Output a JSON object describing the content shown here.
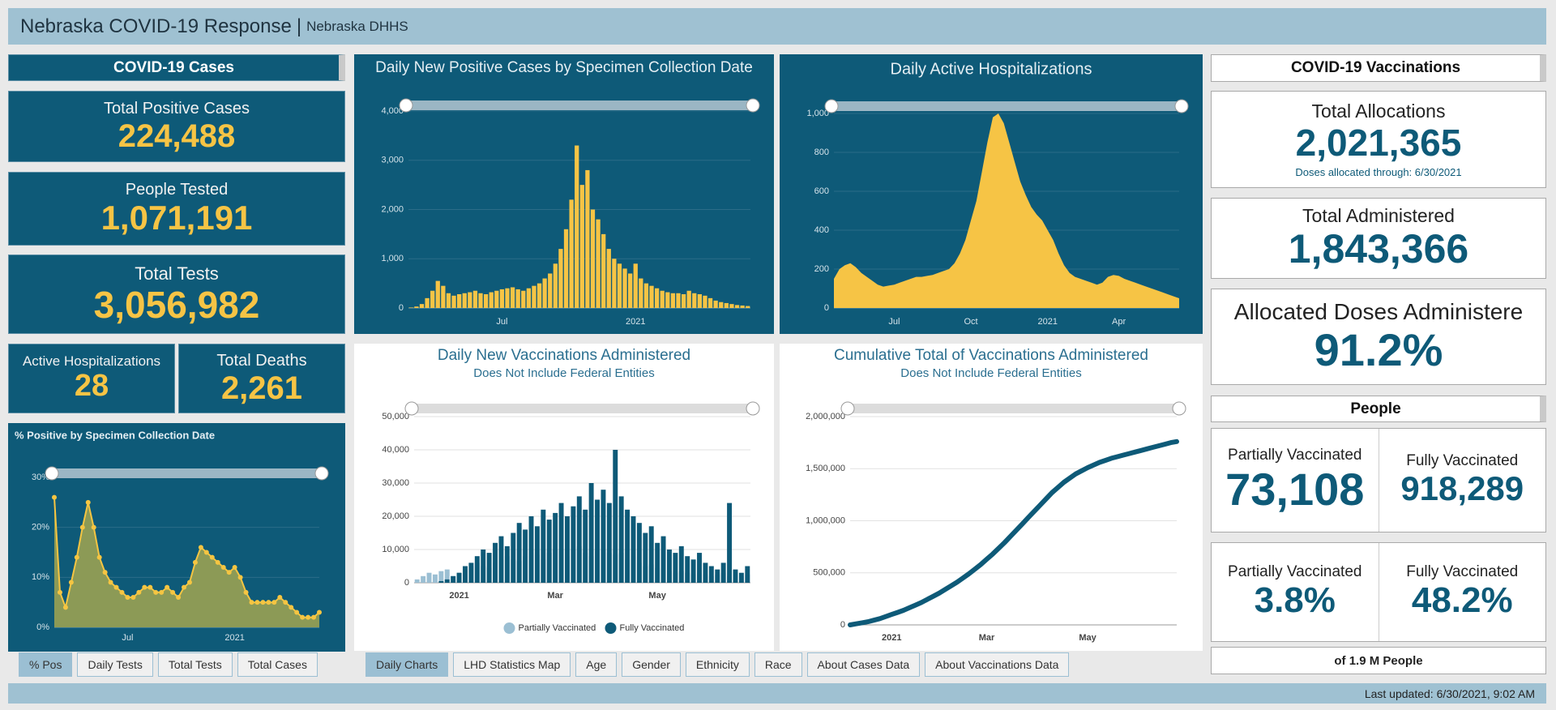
{
  "header": {
    "title": "Nebraska COVID-19 Response",
    "separator": "|",
    "subtitle": "Nebraska DHHS"
  },
  "cases": {
    "heading": "COVID-19 Cases",
    "total_positive": {
      "label": "Total Positive Cases",
      "value": "224,488"
    },
    "people_tested": {
      "label": "People Tested",
      "value": "1,071,191"
    },
    "total_tests": {
      "label": "Total Tests",
      "value": "3,056,982"
    },
    "active_hospitalizations": {
      "label": "Active Hospitalizations",
      "value": "28"
    },
    "total_deaths": {
      "label": "Total Deaths",
      "value": "2,261"
    }
  },
  "vaccinations": {
    "heading": "COVID-19 Vaccinations",
    "total_allocations": {
      "label": "Total Allocations",
      "value": "2,021,365",
      "note": "Doses allocated through: 6/30/2021"
    },
    "total_administered": {
      "label": "Total Administered",
      "value": "1,843,366"
    },
    "allocated_administered": {
      "label": "Allocated Doses Administere",
      "value": "91.2%"
    },
    "people_heading": "People",
    "people_counts": [
      {
        "label": "Partially Vaccinated",
        "value": "73,108"
      },
      {
        "label": "Fully Vaccinated",
        "value": "918,289"
      }
    ],
    "people_percents": [
      {
        "label": "Partially Vaccinated",
        "value": "3.8%"
      },
      {
        "label": "Fully Vaccinated",
        "value": "48.2%"
      }
    ],
    "footnote": "of 1.9 M People"
  },
  "tabs": {
    "left": [
      "% Pos",
      "Daily Tests",
      "Total Tests",
      "Total Cases"
    ],
    "main": [
      "Daily Charts",
      "LHD Statistics Map",
      "Age",
      "Gender",
      "Ethnicity",
      "Race",
      "About Cases Data",
      "About Vaccinations Data"
    ]
  },
  "footer": {
    "last_updated": "Last updated: 6/30/2021, 9:02 AM"
  },
  "chart_data": [
    {
      "type": "area",
      "title": "% Positive by Specimen Collection Date",
      "markers": true,
      "color": "#8c9a56",
      "marker_color": "#f5c542",
      "categories": [
        null,
        null,
        null,
        null,
        null,
        null,
        null,
        null,
        null,
        null,
        null,
        null,
        null,
        "Jul",
        null,
        null,
        null,
        null,
        null,
        null,
        null,
        null,
        null,
        null,
        null,
        null,
        null,
        null,
        null,
        null,
        null,
        null,
        "2021",
        null,
        null,
        null,
        null,
        null,
        null,
        null,
        null,
        null,
        null,
        null,
        null,
        null,
        null,
        null
      ],
      "values": [
        26,
        7,
        4,
        9,
        14,
        20,
        25,
        20,
        14,
        11,
        9,
        8,
        7,
        6,
        6,
        7,
        8,
        8,
        7,
        7,
        8,
        7,
        6,
        8,
        9,
        13,
        16,
        15,
        14,
        13,
        12,
        11,
        12,
        10,
        7,
        5,
        5,
        5,
        5,
        5,
        6,
        5,
        4,
        3,
        2,
        2,
        2,
        3
      ],
      "ylim": [
        0,
        30
      ],
      "yticks": [
        {
          "value": 0,
          "label": "0%"
        },
        {
          "value": 10,
          "label": "10%"
        },
        {
          "value": 20,
          "label": "20%"
        },
        {
          "value": 30,
          "label": "30%"
        }
      ],
      "grid": true
    },
    {
      "type": "bar",
      "title": "Daily New Positive Cases by Specimen Collection Date",
      "color": "#f6c445",
      "categories": [
        null,
        null,
        null,
        null,
        null,
        null,
        null,
        null,
        null,
        null,
        null,
        null,
        null,
        null,
        null,
        null,
        null,
        "Jul",
        null,
        null,
        null,
        null,
        null,
        null,
        null,
        null,
        null,
        null,
        null,
        null,
        null,
        null,
        null,
        null,
        null,
        null,
        null,
        null,
        null,
        null,
        null,
        null,
        "2021",
        null,
        null,
        null,
        null,
        null,
        null,
        null,
        null,
        null,
        null,
        null,
        null,
        null,
        null,
        null,
        null,
        null,
        null,
        null,
        null,
        null
      ],
      "values": [
        10,
        30,
        80,
        200,
        350,
        550,
        450,
        300,
        250,
        280,
        300,
        320,
        350,
        300,
        280,
        320,
        350,
        380,
        400,
        420,
        380,
        350,
        400,
        450,
        500,
        600,
        700,
        900,
        1200,
        1600,
        2200,
        3300,
        2500,
        2800,
        2000,
        1800,
        1500,
        1200,
        1000,
        900,
        800,
        700,
        900,
        600,
        500,
        450,
        400,
        350,
        320,
        300,
        300,
        280,
        350,
        300,
        280,
        250,
        200,
        150,
        120,
        100,
        80,
        60,
        50,
        40
      ],
      "ylim": [
        0,
        4000
      ],
      "yticks": [
        0,
        {
          "value": 1000,
          "label": "1,000"
        },
        {
          "value": 2000,
          "label": "2,000"
        },
        {
          "value": 3000,
          "label": "3,000"
        },
        {
          "value": 4000,
          "label": "4,000"
        }
      ],
      "grid": true
    },
    {
      "type": "area",
      "title": "Daily Active Hospitalizations",
      "markers": false,
      "color": "#f6c445",
      "categories": [
        null,
        null,
        null,
        null,
        null,
        null,
        null,
        null,
        null,
        null,
        null,
        "Jul",
        null,
        null,
        null,
        null,
        null,
        null,
        null,
        null,
        null,
        null,
        null,
        null,
        null,
        "Oct",
        null,
        null,
        null,
        null,
        null,
        null,
        null,
        null,
        null,
        null,
        null,
        null,
        null,
        "2021",
        null,
        null,
        null,
        null,
        null,
        null,
        null,
        null,
        null,
        null,
        null,
        null,
        "Apr",
        null,
        null,
        null,
        null,
        null,
        null,
        null,
        null,
        null,
        null,
        null
      ],
      "values": [
        150,
        200,
        220,
        230,
        210,
        180,
        160,
        140,
        120,
        110,
        115,
        120,
        130,
        140,
        150,
        160,
        160,
        165,
        170,
        180,
        190,
        200,
        230,
        280,
        350,
        450,
        550,
        700,
        850,
        980,
        1000,
        950,
        850,
        750,
        650,
        580,
        520,
        480,
        450,
        400,
        350,
        280,
        220,
        180,
        160,
        150,
        140,
        130,
        120,
        130,
        160,
        170,
        165,
        150,
        140,
        130,
        120,
        110,
        100,
        90,
        80,
        70,
        60,
        50
      ],
      "ylim": [
        0,
        1000
      ],
      "yticks": [
        0,
        200,
        400,
        600,
        800,
        {
          "value": 1000,
          "label": "1,000"
        }
      ],
      "grid": true
    },
    {
      "type": "bar",
      "title": "Daily New Vaccinations Administered",
      "subtitle": "Does Not Include Federal Entities",
      "legend": "bottom",
      "categories": [
        null,
        null,
        null,
        null,
        null,
        null,
        null,
        "2021",
        null,
        null,
        null,
        null,
        null,
        null,
        null,
        null,
        null,
        null,
        null,
        null,
        null,
        null,
        null,
        "Mar",
        null,
        null,
        null,
        null,
        null,
        null,
        null,
        null,
        null,
        null,
        null,
        null,
        null,
        null,
        null,
        null,
        "May",
        null,
        null,
        null,
        null,
        null,
        null,
        null,
        null,
        null,
        null,
        null,
        null,
        null,
        null,
        null
      ],
      "series": [
        {
          "name": "Partially Vaccinated",
          "color": "#9bbfd3",
          "values": [
            1000,
            2000,
            3000,
            2500,
            3500,
            4000,
            2000,
            3000,
            4000,
            5000,
            6000,
            5000,
            4500,
            6000,
            7000,
            8000,
            7000,
            6500,
            8000,
            9000,
            8500,
            7000,
            9000,
            10000,
            9500,
            8000,
            10000,
            11000,
            9000,
            8000,
            9500,
            10000,
            9000,
            8500,
            9000,
            7000,
            8000,
            6000,
            5000,
            5500,
            4500,
            4000,
            3500,
            3000,
            3500,
            3000,
            2500,
            3000,
            2500,
            2000,
            2500,
            3000,
            2000,
            2500,
            2000,
            2500
          ]
        },
        {
          "name": "Fully Vaccinated",
          "color": "#0e5a78",
          "values": [
            0,
            0,
            0,
            0,
            500,
            1000,
            2000,
            3000,
            5000,
            6000,
            8000,
            10000,
            9000,
            12000,
            14000,
            11000,
            15000,
            18000,
            16000,
            20000,
            17000,
            22000,
            19000,
            21000,
            24000,
            20000,
            23000,
            26000,
            22000,
            30000,
            25000,
            28000,
            24000,
            40000,
            26000,
            22000,
            20000,
            18000,
            15000,
            17000,
            12000,
            14000,
            10000,
            9000,
            11000,
            8000,
            7000,
            9000,
            6000,
            5000,
            4000,
            6000,
            24000,
            4000,
            3000,
            5000
          ]
        }
      ],
      "ylim": [
        0,
        50000
      ],
      "yticks": [
        0,
        {
          "value": 10000,
          "label": "10,000"
        },
        {
          "value": 20000,
          "label": "20,000"
        },
        {
          "value": 30000,
          "label": "30,000"
        },
        {
          "value": 40000,
          "label": "40,000"
        },
        {
          "value": 50000,
          "label": "50,000"
        }
      ],
      "grid": true
    },
    {
      "type": "line",
      "title": "Cumulative Total of Vaccinations Administered",
      "subtitle": "Does Not Include Federal Entities",
      "color": "#0e5a78",
      "categories": [
        null,
        null,
        null,
        null,
        null,
        null,
        null,
        "2021",
        null,
        null,
        null,
        null,
        null,
        null,
        null,
        null,
        null,
        null,
        null,
        null,
        null,
        null,
        null,
        "Mar",
        null,
        null,
        null,
        null,
        null,
        null,
        null,
        null,
        null,
        null,
        null,
        null,
        null,
        null,
        null,
        null,
        "May",
        null,
        null,
        null,
        null,
        null,
        null,
        null,
        null,
        null,
        null,
        null,
        null,
        null,
        null,
        null
      ],
      "values": [
        0,
        10000,
        20000,
        30000,
        45000,
        60000,
        80000,
        100000,
        120000,
        140000,
        165000,
        190000,
        215000,
        245000,
        275000,
        305000,
        340000,
        375000,
        410000,
        450000,
        490000,
        535000,
        580000,
        630000,
        680000,
        735000,
        790000,
        850000,
        910000,
        970000,
        1030000,
        1090000,
        1150000,
        1210000,
        1270000,
        1320000,
        1370000,
        1410000,
        1450000,
        1480000,
        1510000,
        1535000,
        1560000,
        1580000,
        1600000,
        1615000,
        1630000,
        1645000,
        1660000,
        1675000,
        1690000,
        1705000,
        1720000,
        1735000,
        1750000,
        1760000
      ],
      "ylim": [
        0,
        2000000
      ],
      "yticks": [
        0,
        {
          "value": 500000,
          "label": "500,000"
        },
        {
          "value": 1000000,
          "label": "1,000,000"
        },
        {
          "value": 1500000,
          "label": "1,500,000"
        },
        {
          "value": 2000000,
          "label": "2,000,000"
        }
      ],
      "grid": true
    }
  ]
}
